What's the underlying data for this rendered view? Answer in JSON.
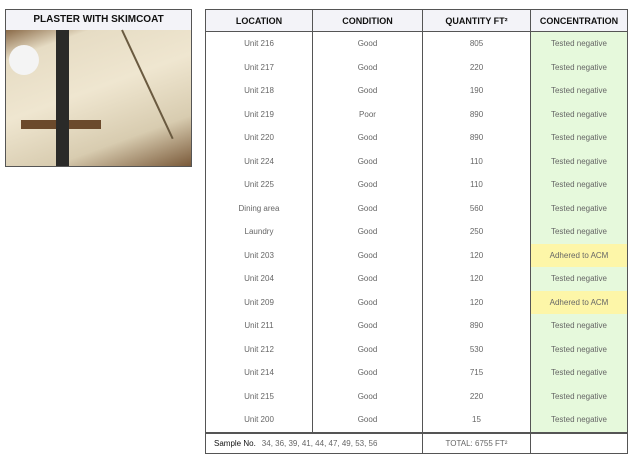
{
  "photo": {
    "title": "PLASTER WITH SKIMCOAT"
  },
  "table": {
    "headers": [
      "LOCATION",
      "CONDITION",
      "QUANTITY FT²",
      "CONCENTRATION"
    ],
    "rows": [
      {
        "location": "Unit 216",
        "condition": "Good",
        "quantity": "805",
        "concentration": "Tested negative",
        "status": "neg"
      },
      {
        "location": "Unit 217",
        "condition": "Good",
        "quantity": "220",
        "concentration": "Tested negative",
        "status": "neg"
      },
      {
        "location": "Unit 218",
        "condition": "Good",
        "quantity": "190",
        "concentration": "Tested negative",
        "status": "neg"
      },
      {
        "location": "Unit 219",
        "condition": "Poor",
        "quantity": "890",
        "concentration": "Tested negative",
        "status": "neg"
      },
      {
        "location": "Unit 220",
        "condition": "Good",
        "quantity": "890",
        "concentration": "Tested negative",
        "status": "neg"
      },
      {
        "location": "Unit 224",
        "condition": "Good",
        "quantity": "110",
        "concentration": "Tested negative",
        "status": "neg"
      },
      {
        "location": "Unit 225",
        "condition": "Good",
        "quantity": "110",
        "concentration": "Tested negative",
        "status": "neg"
      },
      {
        "location": "Dining area",
        "condition": "Good",
        "quantity": "560",
        "concentration": "Tested negative",
        "status": "neg"
      },
      {
        "location": "Laundry",
        "condition": "Good",
        "quantity": "250",
        "concentration": "Tested negative",
        "status": "neg"
      },
      {
        "location": "Unit 203",
        "condition": "Good",
        "quantity": "120",
        "concentration": "Adhered to ACM",
        "status": "acm"
      },
      {
        "location": "Unit 204",
        "condition": "Good",
        "quantity": "120",
        "concentration": "Tested negative",
        "status": "neg"
      },
      {
        "location": "Unit 209",
        "condition": "Good",
        "quantity": "120",
        "concentration": "Adhered to ACM",
        "status": "acm"
      },
      {
        "location": "Unit 211",
        "condition": "Good",
        "quantity": "890",
        "concentration": "Tested negative",
        "status": "neg"
      },
      {
        "location": "Unit 212",
        "condition": "Good",
        "quantity": "530",
        "concentration": "Tested negative",
        "status": "neg"
      },
      {
        "location": "Unit 214",
        "condition": "Good",
        "quantity": "715",
        "concentration": "Tested negative",
        "status": "neg"
      },
      {
        "location": "Unit 215",
        "condition": "Good",
        "quantity": "220",
        "concentration": "Tested negative",
        "status": "neg"
      },
      {
        "location": "Unit 200",
        "condition": "Good",
        "quantity": "15",
        "concentration": "Tested negative",
        "status": "neg"
      }
    ],
    "footer": {
      "sample_label": "Sample No.",
      "sample_numbers": "34, 36, 39, 41, 44, 47, 49, 53, 56",
      "total": "TOTAL: 6755 FT²"
    }
  },
  "colors": {
    "negative": "#e6f9dc",
    "adhered": "#fdf6a8",
    "header": "#f3f3f8"
  }
}
